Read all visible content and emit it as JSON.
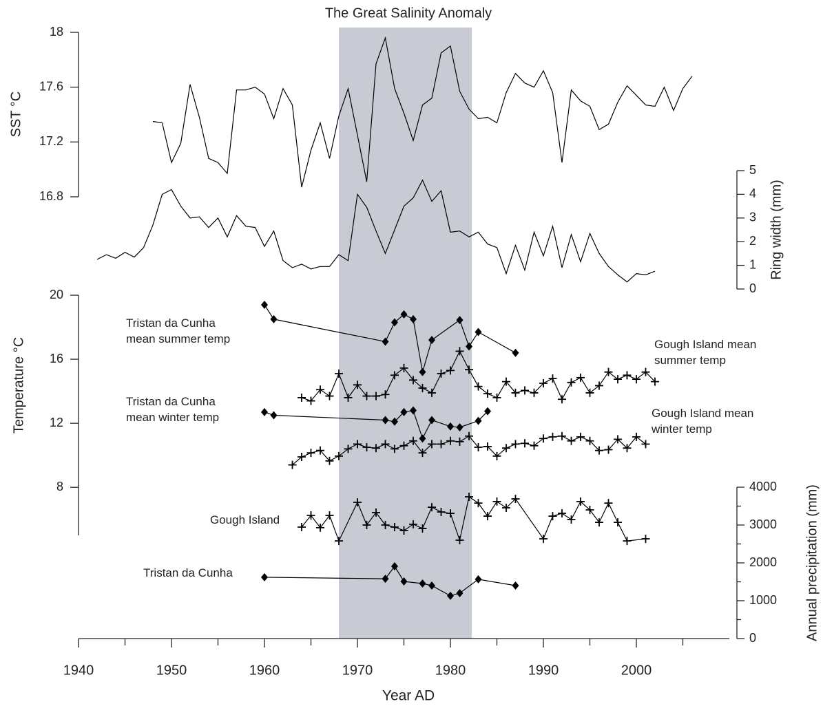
{
  "chart_data": [
    {
      "type": "line",
      "title": "The Great Salinity Anomaly",
      "highlight_x": [
        1968,
        1982.3
      ],
      "highlight_color": "#c8cbd3",
      "ylabel": "SST °C",
      "y_side": "left",
      "ylim": [
        16.8,
        18
      ],
      "yticks": [
        16.8,
        17.2,
        17.6,
        18
      ],
      "series": [
        {
          "color": "#000000",
          "marker": "none",
          "x": [
            1948,
            1949,
            1950,
            1951,
            1952,
            1953,
            1954,
            1955,
            1956,
            1957,
            1958,
            1959,
            1960,
            1961,
            1962,
            1963,
            1964,
            1965,
            1966,
            1967,
            1968,
            1969,
            1970,
            1971,
            1972,
            1973,
            1974,
            1975,
            1976,
            1977,
            1978,
            1979,
            1980,
            1981,
            1982,
            1983,
            1984,
            1985,
            1986,
            1987,
            1988,
            1989,
            1990,
            1991,
            1992,
            1993,
            1994,
            1995,
            1996,
            1997,
            1998,
            1999,
            2000,
            2001,
            2002,
            2003,
            2004,
            2005,
            2006
          ],
          "values": [
            17.35,
            17.34,
            17.05,
            17.19,
            17.62,
            17.38,
            17.08,
            17.05,
            16.97,
            17.58,
            17.58,
            17.6,
            17.55,
            17.37,
            17.59,
            17.47,
            16.87,
            17.14,
            17.34,
            17.08,
            17.39,
            17.59,
            17.25,
            16.91,
            17.77,
            17.96,
            17.59,
            17.41,
            17.21,
            17.47,
            17.52,
            17.85,
            17.9,
            17.57,
            17.44,
            17.37,
            17.38,
            17.34,
            17.56,
            17.7,
            17.63,
            17.6,
            17.72,
            17.56,
            17.05,
            17.58,
            17.5,
            17.46,
            17.29,
            17.33,
            17.49,
            17.61,
            17.54,
            17.47,
            17.46,
            17.6,
            17.43,
            17.59,
            17.68
          ]
        }
      ]
    },
    {
      "type": "line",
      "ylabel": "Ring width (mm)",
      "y_side": "right",
      "ylim": [
        0,
        5
      ],
      "yticks": [
        0,
        1,
        2,
        3,
        4,
        5
      ],
      "series": [
        {
          "color": "#000000",
          "marker": "none",
          "x": [
            1942,
            1943,
            1944,
            1945,
            1946,
            1947,
            1948,
            1949,
            1950,
            1951,
            1952,
            1953,
            1954,
            1955,
            1956,
            1957,
            1958,
            1959,
            1960,
            1961,
            1962,
            1963,
            1964,
            1965,
            1966,
            1967,
            1968,
            1969,
            1970,
            1971,
            1972,
            1973,
            1974,
            1975,
            1976,
            1977,
            1978,
            1979,
            1980,
            1981,
            1982,
            1983,
            1984,
            1985,
            1986,
            1987,
            1988,
            1989,
            1990,
            1991,
            1992,
            1993,
            1994,
            1995,
            1996,
            1997,
            1998,
            1999,
            2000,
            2001,
            2002
          ],
          "values": [
            1.25,
            1.45,
            1.3,
            1.55,
            1.35,
            1.75,
            2.7,
            4.0,
            4.2,
            3.5,
            3.0,
            3.05,
            2.6,
            3.0,
            2.2,
            3.1,
            2.65,
            2.6,
            1.8,
            2.45,
            1.2,
            0.9,
            1.05,
            0.85,
            0.95,
            0.95,
            1.45,
            1.2,
            4.0,
            3.45,
            2.45,
            1.5,
            2.5,
            3.5,
            3.85,
            4.6,
            3.7,
            4.15,
            2.4,
            2.45,
            2.2,
            2.4,
            1.9,
            1.75,
            0.65,
            1.85,
            0.8,
            2.4,
            1.4,
            2.65,
            0.9,
            2.3,
            1.15,
            2.35,
            1.5,
            0.95,
            0.6,
            0.3,
            0.65,
            0.6,
            0.75
          ]
        }
      ]
    },
    {
      "type": "line",
      "ylabel": "Temperature °C",
      "y_side": "left",
      "ylim": [
        5,
        20
      ],
      "yticks": [
        8,
        12,
        16,
        20
      ],
      "series": [
        {
          "name": "Tristan da Cunha mean summer temp",
          "color": "#000000",
          "marker": "diamond",
          "x": [
            1960,
            1961,
            1973,
            1974,
            1975,
            1976,
            1977,
            1978,
            1981,
            1982,
            1983,
            1987
          ],
          "values": [
            19.4,
            18.5,
            17.1,
            18.3,
            18.8,
            18.5,
            15.2,
            17.2,
            18.45,
            16.8,
            17.7,
            16.4
          ]
        },
        {
          "name": "Gough Island mean summer temp",
          "color": "#000000",
          "marker": "plus",
          "x": [
            1964,
            1965,
            1966,
            1967,
            1968,
            1969,
            1970,
            1971,
            1972,
            1973,
            1974,
            1975,
            1976,
            1977,
            1978,
            1979,
            1980,
            1981,
            1982,
            1983,
            1984,
            1985,
            1986,
            1987,
            1988,
            1989,
            1990,
            1991,
            1992,
            1993,
            1994,
            1995,
            1996,
            1997,
            1998,
            1999,
            2000,
            2001,
            2002
          ],
          "values": [
            13.6,
            13.4,
            14.1,
            13.7,
            15.1,
            13.6,
            14.4,
            13.7,
            13.7,
            13.8,
            15.0,
            15.45,
            14.7,
            14.2,
            13.9,
            15.1,
            15.3,
            16.5,
            15.35,
            14.3,
            13.85,
            13.6,
            14.6,
            13.9,
            14.05,
            13.9,
            14.5,
            14.8,
            13.5,
            14.55,
            14.85,
            13.9,
            14.35,
            15.2,
            14.75,
            15.0,
            14.75,
            15.2,
            14.6
          ]
        },
        {
          "name": "Tristan da Cunha mean winter temp",
          "color": "#000000",
          "marker": "diamond",
          "x": [
            1960,
            1961,
            1973,
            1974,
            1975,
            1976,
            1977,
            1978,
            1980,
            1981,
            1983,
            1984
          ],
          "values": [
            12.7,
            12.5,
            12.2,
            12.1,
            12.7,
            12.8,
            11.05,
            12.2,
            11.8,
            11.75,
            12.15,
            12.75
          ]
        },
        {
          "name": "Gough Island mean winter temp",
          "color": "#000000",
          "marker": "plus",
          "x": [
            1963,
            1964,
            1965,
            1966,
            1967,
            1968,
            1969,
            1970,
            1971,
            1972,
            1973,
            1974,
            1975,
            1976,
            1977,
            1978,
            1979,
            1980,
            1981,
            1982,
            1983,
            1984,
            1985,
            1986,
            1987,
            1988,
            1989,
            1990,
            1991,
            1992,
            1993,
            1994,
            1995,
            1996,
            1997,
            1998,
            1999,
            2000,
            2001
          ],
          "values": [
            9.4,
            9.9,
            10.15,
            10.3,
            9.65,
            9.95,
            10.4,
            10.7,
            10.5,
            10.45,
            10.7,
            10.4,
            10.6,
            10.9,
            10.15,
            10.7,
            10.7,
            10.9,
            10.85,
            11.2,
            10.5,
            10.55,
            9.95,
            10.45,
            10.7,
            10.75,
            10.6,
            11.05,
            11.15,
            11.2,
            10.9,
            11.15,
            10.9,
            10.3,
            10.35,
            11.0,
            10.45,
            11.15,
            10.7
          ]
        }
      ]
    },
    {
      "type": "line",
      "ylabel": "Annual precipitation (mm)",
      "y_side": "right",
      "ylim": [
        0,
        4000
      ],
      "yticks": [
        0,
        1000,
        2000,
        3000,
        4000
      ],
      "yminorticks": [
        500,
        1500,
        2500,
        3500
      ],
      "xlabel": "Year AD",
      "xlim": [
        1940,
        2010
      ],
      "xticks": [
        1940,
        1950,
        1960,
        1970,
        1980,
        1990,
        2000
      ],
      "xminorticks": [
        1945,
        1955,
        1965,
        1975,
        1985,
        1995,
        2005
      ],
      "series": [
        {
          "name": "Gough Island",
          "color": "#000000",
          "marker": "plus",
          "x": [
            1964,
            1965,
            1966,
            1967,
            1968,
            1970,
            1971,
            1972,
            1973,
            1974,
            1975,
            1976,
            1977,
            1978,
            1979,
            1980,
            1981,
            1982,
            1983,
            1984,
            1985,
            1986,
            1987,
            1990,
            1991,
            1992,
            1993,
            1994,
            1995,
            1996,
            1997,
            1998,
            1999,
            2001
          ],
          "values": [
            2945,
            3255,
            2930,
            3255,
            2580,
            3600,
            3000,
            3330,
            3000,
            2945,
            2855,
            3020,
            2910,
            3470,
            3345,
            3310,
            2600,
            3745,
            3580,
            3235,
            3620,
            3455,
            3690,
            2635,
            3235,
            3310,
            3145,
            3620,
            3400,
            3070,
            3580,
            3070,
            2580,
            2635
          ]
        },
        {
          "name": "Tristan da Cunha",
          "color": "#000000",
          "marker": "diamond",
          "x": [
            1960,
            1973,
            1974,
            1975,
            1977,
            1978,
            1980,
            1981,
            1983,
            1987
          ],
          "values": [
            1620,
            1580,
            1910,
            1510,
            1455,
            1400,
            1130,
            1200,
            1565,
            1400
          ]
        }
      ]
    }
  ]
}
